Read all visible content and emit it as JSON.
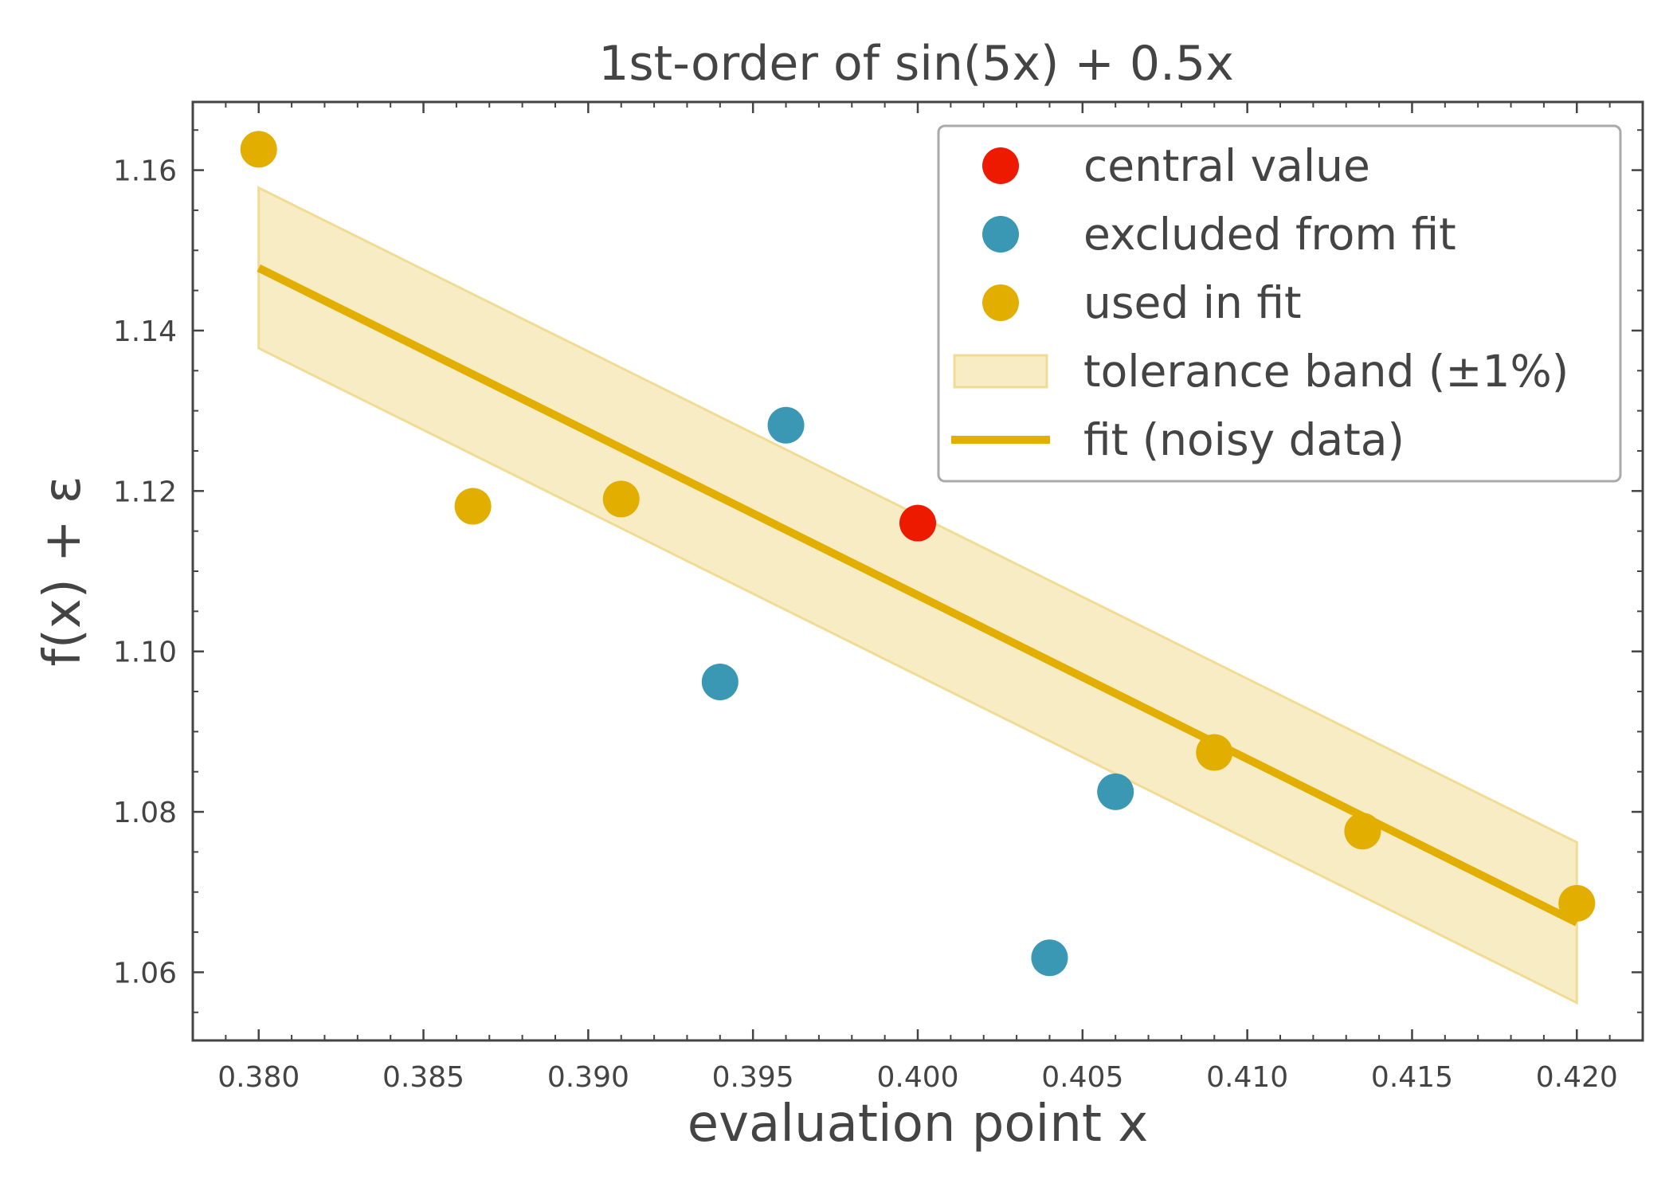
{
  "chart_data": {
    "type": "scatter",
    "title": "1st-order of sin(5x) + 0.5x",
    "xlabel": "evaluation point x",
    "ylabel": "f(x) + ε",
    "xlim": [
      0.378,
      0.422
    ],
    "ylim": [
      1.0515,
      1.1685
    ],
    "xticks": [
      0.38,
      0.385,
      0.39,
      0.395,
      0.4,
      0.405,
      0.41,
      0.415,
      0.42
    ],
    "xtick_labels": [
      "0.380",
      "0.385",
      "0.390",
      "0.395",
      "0.400",
      "0.405",
      "0.410",
      "0.415",
      "0.420"
    ],
    "yticks": [
      1.06,
      1.08,
      1.1,
      1.12,
      1.14,
      1.16
    ],
    "ytick_labels": [
      "1.06",
      "1.08",
      "1.10",
      "1.12",
      "1.14",
      "1.16"
    ],
    "grid": false,
    "legend_position": "top-right",
    "colors": {
      "central": "#ee1a00",
      "excluded": "#3a98b4",
      "used": "#e2ae00",
      "band_fill": "#f7ecc4",
      "band_edge": "#f1dc95",
      "axis": "#444444"
    },
    "central_value": {
      "name": "central value",
      "points": [
        {
          "x": 0.4,
          "y": 1.116
        }
      ]
    },
    "excluded_from_fit": {
      "name": "excluded from fit",
      "points": [
        {
          "x": 0.394,
          "y": 1.0962
        },
        {
          "x": 0.396,
          "y": 1.1282
        },
        {
          "x": 0.404,
          "y": 1.0618
        },
        {
          "x": 0.406,
          "y": 1.0825
        }
      ]
    },
    "used_in_fit": {
      "name": "used in fit",
      "points": [
        {
          "x": 0.38,
          "y": 1.1626
        },
        {
          "x": 0.3865,
          "y": 1.1181
        },
        {
          "x": 0.391,
          "y": 1.119
        },
        {
          "x": 0.409,
          "y": 1.0874
        },
        {
          "x": 0.4135,
          "y": 1.0776
        },
        {
          "x": 0.42,
          "y": 1.0686
        }
      ]
    },
    "fit_line": {
      "name": "fit (noisy data)",
      "x": [
        0.38,
        0.42
      ],
      "y": [
        1.1478,
        1.0662
      ]
    },
    "tolerance_band": {
      "name": "tolerance band (±1%)",
      "x": [
        0.38,
        0.42
      ],
      "lower": [
        1.1378,
        1.0562
      ],
      "upper": [
        1.1578,
        1.0762
      ]
    },
    "legend": [
      {
        "label": "central value",
        "kind": "marker",
        "color": "#ee1a00"
      },
      {
        "label": "excluded from fit",
        "kind": "marker",
        "color": "#3a98b4"
      },
      {
        "label": "used in fit",
        "kind": "marker",
        "color": "#e2ae00"
      },
      {
        "label": "tolerance band (±1%)",
        "kind": "patch",
        "color": "#f7ecc4"
      },
      {
        "label": "fit (noisy data)",
        "kind": "line",
        "color": "#e2ae00"
      }
    ]
  }
}
